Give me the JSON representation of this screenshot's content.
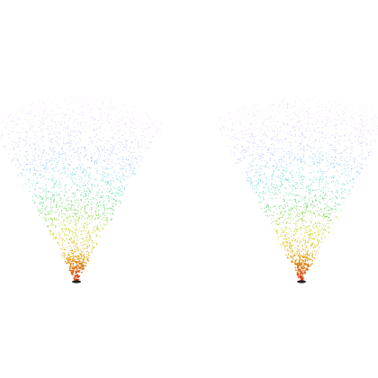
{
  "scene": {
    "background": "#ffffff",
    "emitter_color": "#222222",
    "fountains": [
      {
        "name": "fountain-left"
      },
      {
        "name": "fountain-right"
      }
    ],
    "particle_gradient": [
      "#d62a10",
      "#e0a000",
      "#c8d000",
      "#44c844",
      "#33cccc",
      "#7fa0ff",
      "#c9a0ff",
      "#ffb0ff"
    ]
  }
}
